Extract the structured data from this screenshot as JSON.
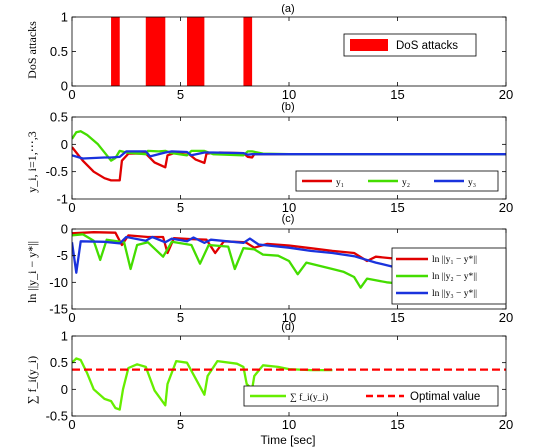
{
  "xlabel": "Time [sec]",
  "chart_data": [
    {
      "type": "bar",
      "title": "(a)",
      "ylabel": "DoS attacks",
      "xlim": [
        0,
        20
      ],
      "ylim": [
        0,
        1
      ],
      "xticks": [
        "0",
        "5",
        "10",
        "15",
        "20"
      ],
      "yticks": [
        "0",
        "0.5",
        "1"
      ],
      "legend_position": "top-right",
      "series": [
        {
          "name": "DoS attacks",
          "color": "#ff0000",
          "intervals": [
            [
              1.8,
              2.2
            ],
            [
              3.4,
              4.3
            ],
            [
              5.3,
              6.1
            ],
            [
              7.9,
              8.3
            ]
          ]
        }
      ]
    },
    {
      "type": "line",
      "title": "(b)",
      "ylabel": "y_i, i=1,⋯,3",
      "xlim": [
        0,
        20
      ],
      "ylim": [
        -1,
        0.5
      ],
      "xticks": [
        "0",
        "5",
        "10",
        "15",
        "20"
      ],
      "yticks": [
        "-1",
        "-0.5",
        "0",
        "0.5"
      ],
      "legend_position": "bottom-right",
      "series": [
        {
          "name": "y₁",
          "color": "#e00000",
          "points": [
            [
              0,
              -0.05
            ],
            [
              0.5,
              -0.3
            ],
            [
              1,
              -0.5
            ],
            [
              1.5,
              -0.62
            ],
            [
              1.8,
              -0.66
            ],
            [
              2.2,
              -0.66
            ],
            [
              2.3,
              -0.3
            ],
            [
              2.6,
              -0.17
            ],
            [
              3.4,
              -0.17
            ],
            [
              3.8,
              -0.33
            ],
            [
              4.3,
              -0.42
            ],
            [
              4.4,
              -0.2
            ],
            [
              4.8,
              -0.15
            ],
            [
              5.3,
              -0.15
            ],
            [
              5.7,
              -0.28
            ],
            [
              6.1,
              -0.34
            ],
            [
              6.2,
              -0.17
            ],
            [
              6.8,
              -0.15
            ],
            [
              7.9,
              -0.16
            ],
            [
              8.1,
              -0.23
            ],
            [
              8.3,
              -0.24
            ],
            [
              8.4,
              -0.18
            ],
            [
              9,
              -0.18
            ],
            [
              20,
              -0.18
            ]
          ]
        },
        {
          "name": "y₂",
          "color": "#44dd00",
          "points": [
            [
              0,
              0.1
            ],
            [
              0.2,
              0.22
            ],
            [
              0.4,
              0.24
            ],
            [
              0.7,
              0.17
            ],
            [
              1.2,
              0.0
            ],
            [
              1.8,
              -0.3
            ],
            [
              2.0,
              -0.25
            ],
            [
              2.2,
              -0.12
            ],
            [
              2.5,
              -0.15
            ],
            [
              3.4,
              -0.18
            ],
            [
              3.5,
              -0.12
            ],
            [
              4.0,
              -0.13
            ],
            [
              4.3,
              -0.12
            ],
            [
              4.6,
              -0.16
            ],
            [
              5.3,
              -0.2
            ],
            [
              5.5,
              -0.12
            ],
            [
              6.1,
              -0.12
            ],
            [
              6.5,
              -0.18
            ],
            [
              7.9,
              -0.2
            ],
            [
              8.1,
              -0.13
            ],
            [
              8.3,
              -0.13
            ],
            [
              8.8,
              -0.17
            ],
            [
              10,
              -0.18
            ],
            [
              20,
              -0.18
            ]
          ]
        },
        {
          "name": "y₃",
          "color": "#1a33dd",
          "points": [
            [
              0,
              -0.2
            ],
            [
              0.5,
              -0.26
            ],
            [
              1.5,
              -0.24
            ],
            [
              1.8,
              -0.24
            ],
            [
              2.2,
              -0.23
            ],
            [
              2.5,
              -0.13
            ],
            [
              3.4,
              -0.13
            ],
            [
              3.6,
              -0.22
            ],
            [
              4.3,
              -0.15
            ],
            [
              4.6,
              -0.13
            ],
            [
              5.3,
              -0.14
            ],
            [
              5.5,
              -0.2
            ],
            [
              6.1,
              -0.15
            ],
            [
              6.5,
              -0.15
            ],
            [
              7.9,
              -0.16
            ],
            [
              8.1,
              -0.19
            ],
            [
              8.3,
              -0.18
            ],
            [
              9,
              -0.18
            ],
            [
              20,
              -0.18
            ]
          ]
        }
      ]
    },
    {
      "type": "line",
      "title": "(c)",
      "ylabel": "ln ||y_i − y*||",
      "xlim": [
        0,
        20
      ],
      "ylim": [
        -15,
        0
      ],
      "xticks": [
        "0",
        "5",
        "10",
        "15",
        "20"
      ],
      "yticks": [
        "-15",
        "-10",
        "-5",
        "0"
      ],
      "legend_position": "right",
      "series": [
        {
          "name": "ln ||y₁ − y*||",
          "color": "#e00000",
          "points": [
            [
              0,
              -0.8
            ],
            [
              1,
              -0.6
            ],
            [
              2,
              -0.7
            ],
            [
              2.3,
              -3
            ],
            [
              2.6,
              -1.2
            ],
            [
              3.5,
              -1.5
            ],
            [
              4.2,
              -1.5
            ],
            [
              4.4,
              -4.5
            ],
            [
              4.7,
              -1.7
            ],
            [
              5.5,
              -1.9
            ],
            [
              6.2,
              -2.0
            ],
            [
              6.6,
              -4.5
            ],
            [
              7,
              -2.3
            ],
            [
              8,
              -2.5
            ],
            [
              8.4,
              -3.5
            ],
            [
              9,
              -2.8
            ],
            [
              10,
              -3.1
            ],
            [
              11,
              -3.6
            ],
            [
              12,
              -4.1
            ],
            [
              13,
              -4.5
            ],
            [
              13.6,
              -6
            ],
            [
              14,
              -5.2
            ],
            [
              15,
              -5.6
            ],
            [
              15.3,
              -7
            ],
            [
              15.6,
              -6
            ]
          ]
        },
        {
          "name": "ln ||y₂ − y*||",
          "color": "#44dd00",
          "points": [
            [
              0,
              -1.2
            ],
            [
              0.5,
              -1.0
            ],
            [
              1,
              -2.2
            ],
            [
              1.3,
              -5.8
            ],
            [
              1.6,
              -2.0
            ],
            [
              2.4,
              -2.5
            ],
            [
              2.7,
              -7.5
            ],
            [
              3.0,
              -3.0
            ],
            [
              3.5,
              -2.5
            ],
            [
              4.2,
              -5.2
            ],
            [
              4.6,
              -2.4
            ],
            [
              5.5,
              -3.0
            ],
            [
              5.9,
              -6.5
            ],
            [
              6.3,
              -3.0
            ],
            [
              7.2,
              -3.3
            ],
            [
              7.5,
              -7.5
            ],
            [
              7.9,
              -3.6
            ],
            [
              8.4,
              -3.8
            ],
            [
              8.8,
              -4.8
            ],
            [
              9.5,
              -5.0
            ],
            [
              10,
              -6
            ],
            [
              10.4,
              -8.5
            ],
            [
              10.8,
              -6.3
            ],
            [
              12,
              -7.5
            ],
            [
              12.5,
              -8
            ],
            [
              13,
              -9
            ],
            [
              13.3,
              -11
            ],
            [
              13.6,
              -9.3
            ],
            [
              14.5,
              -10
            ],
            [
              15.2,
              -10.3
            ]
          ]
        },
        {
          "name": "ln ||y₃ − y*||",
          "color": "#1a33dd",
          "points": [
            [
              0,
              -2.5
            ],
            [
              0.2,
              -8.2
            ],
            [
              0.4,
              -2.3
            ],
            [
              1.5,
              -2.4
            ],
            [
              2.2,
              -2.7
            ],
            [
              2.5,
              -1.5
            ],
            [
              3.4,
              -2.2
            ],
            [
              3.7,
              -1.5
            ],
            [
              4.3,
              -2.5
            ],
            [
              4.6,
              -1.8
            ],
            [
              5.3,
              -2.3
            ],
            [
              5.6,
              -1.6
            ],
            [
              6.1,
              -2.6
            ],
            [
              6.4,
              -2.0
            ],
            [
              7.9,
              -2.6
            ],
            [
              8.2,
              -1.8
            ],
            [
              8.6,
              -2.9
            ],
            [
              10,
              -3.5
            ],
            [
              11,
              -4.1
            ],
            [
              12,
              -4.5
            ],
            [
              13,
              -5.1
            ],
            [
              14,
              -6.3
            ],
            [
              15,
              -7.3
            ],
            [
              15.6,
              -8.1
            ]
          ]
        }
      ]
    },
    {
      "type": "line",
      "title": "(d)",
      "ylabel": "∑ f_i(y_i)",
      "xlim": [
        0,
        20
      ],
      "ylim": [
        -0.5,
        1
      ],
      "xticks": [
        "0",
        "5",
        "10",
        "15",
        "20"
      ],
      "yticks": [
        "-0.5",
        "0",
        "0.5",
        "1"
      ],
      "legend_position": "bottom-right",
      "series": [
        {
          "name": "∑ f_i(y_i)",
          "color": "#66ee00",
          "points": [
            [
              0,
              0.5
            ],
            [
              0.2,
              0.58
            ],
            [
              0.4,
              0.55
            ],
            [
              0.7,
              0.3
            ],
            [
              1,
              0.0
            ],
            [
              1.5,
              -0.18
            ],
            [
              1.8,
              -0.22
            ],
            [
              2.0,
              -0.35
            ],
            [
              2.2,
              -0.38
            ],
            [
              2.35,
              0.0
            ],
            [
              2.6,
              0.4
            ],
            [
              3.0,
              0.47
            ],
            [
              3.4,
              0.42
            ],
            [
              3.8,
              -0.02
            ],
            [
              4.3,
              -0.3
            ],
            [
              4.4,
              0.1
            ],
            [
              4.8,
              0.53
            ],
            [
              5.3,
              0.5
            ],
            [
              5.7,
              0.2
            ],
            [
              6.1,
              -0.1
            ],
            [
              6.25,
              0.25
            ],
            [
              6.7,
              0.53
            ],
            [
              7.6,
              0.48
            ],
            [
              7.9,
              0.42
            ],
            [
              8.05,
              0.1
            ],
            [
              8.3,
              0.0
            ],
            [
              8.4,
              0.25
            ],
            [
              8.8,
              0.45
            ],
            [
              9.5,
              0.42
            ],
            [
              10,
              0.38
            ],
            [
              11,
              0.36
            ],
            [
              12,
              0.36
            ]
          ]
        },
        {
          "name": "Optimal value",
          "color": "#ff0000",
          "dashed": true,
          "points": [
            [
              0,
              0.37
            ],
            [
              20,
              0.37
            ]
          ]
        }
      ]
    }
  ]
}
